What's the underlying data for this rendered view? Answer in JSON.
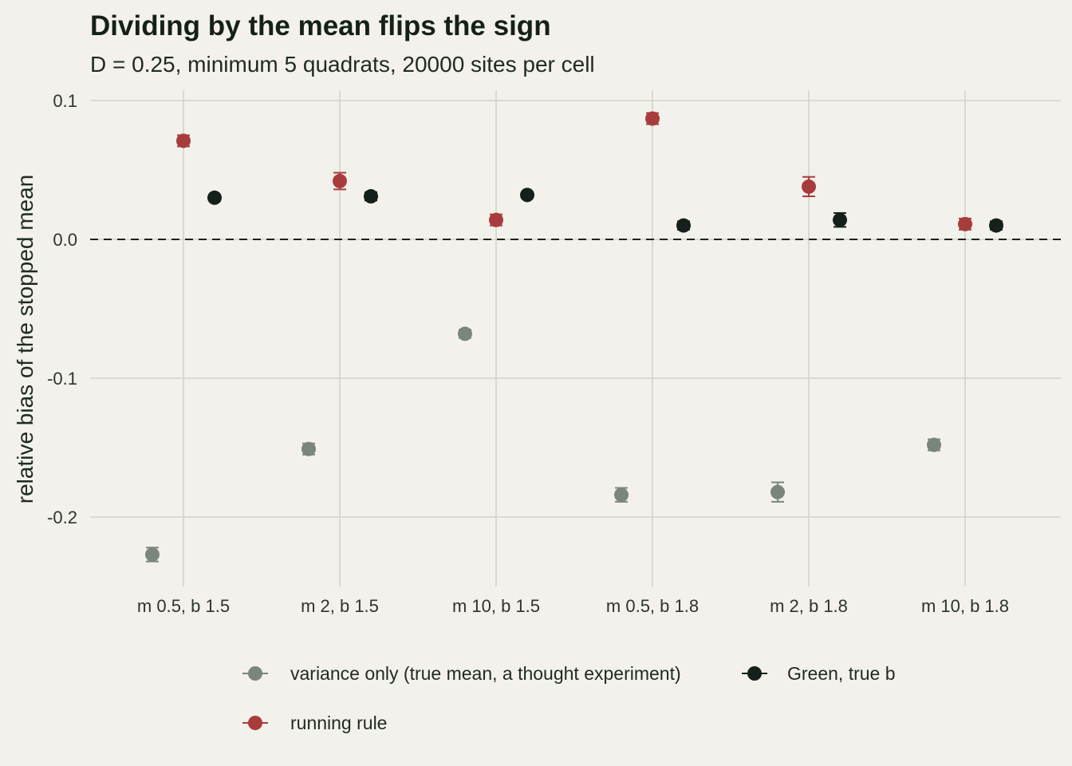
{
  "chart_data": {
    "type": "scatter",
    "title": "Dividing by the mean flips the sign",
    "subtitle": "D = 0.25, minimum 5 quadrats, 20000 sites per cell",
    "xlabel": "",
    "ylabel": "relative bias of the stopped mean",
    "categories": [
      "m 0.5, b 1.5",
      "m 2, b 1.5",
      "m 10, b 1.5",
      "m 0.5, b 1.8",
      "m 2, b 1.8",
      "m 10, b 1.8"
    ],
    "ylim": [
      -0.25,
      0.105
    ],
    "yticks": [
      0.1,
      0.0,
      -0.1,
      -0.2
    ],
    "ytick_labels": [
      "0.1",
      "0.0",
      "-0.1",
      "-0.2"
    ],
    "reference_line": {
      "y": 0,
      "style": "dashed"
    },
    "grid": true,
    "legend_position": "bottom",
    "error_bars": true,
    "series": [
      {
        "name": "variance only (true mean, a thought experiment)",
        "color": "#7a857d",
        "values": [
          -0.227,
          -0.151,
          -0.068,
          -0.184,
          -0.182,
          -0.148
        ],
        "errors": [
          0.005,
          0.004,
          0.003,
          0.005,
          0.007,
          0.004
        ]
      },
      {
        "name": "running rule",
        "color": "#a83c3c",
        "values": [
          0.071,
          0.042,
          0.014,
          0.087,
          0.038,
          0.011
        ],
        "errors": [
          0.004,
          0.006,
          0.004,
          0.004,
          0.007,
          0.004
        ]
      },
      {
        "name": "Green, true b",
        "color": "#142019",
        "values": [
          0.03,
          0.031,
          0.032,
          0.01,
          0.014,
          0.01
        ],
        "errors": [
          0.002,
          0.003,
          0.002,
          0.003,
          0.005,
          0.003
        ]
      }
    ]
  }
}
